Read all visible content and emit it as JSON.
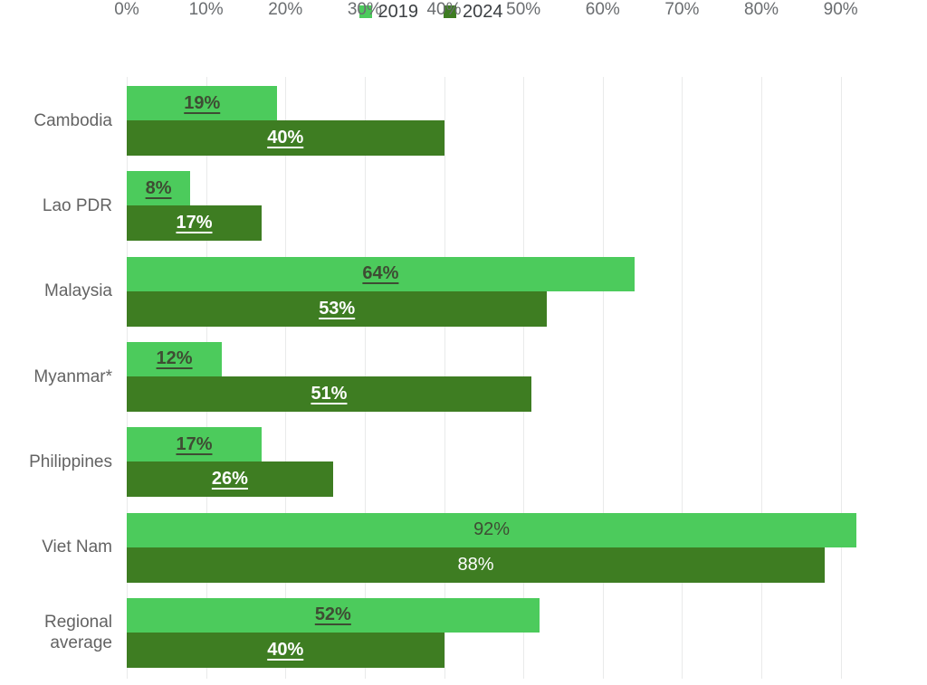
{
  "legend": {
    "items": [
      {
        "label": "2019",
        "color": "#4ccb5c"
      },
      {
        "label": "2024",
        "color": "#3e7d22"
      }
    ]
  },
  "chart_data": {
    "type": "bar",
    "orientation": "horizontal",
    "title": "",
    "categories": [
      "Cambodia",
      "Lao PDR",
      "Malaysia",
      "Myanmar*",
      "Philippines",
      "Viet Nam",
      "Regional average"
    ],
    "series": [
      {
        "name": "2019",
        "color": "#4ccb5c",
        "values": [
          19,
          8,
          64,
          12,
          17,
          92,
          52
        ]
      },
      {
        "name": "2024",
        "color": "#3e7d22",
        "values": [
          40,
          17,
          53,
          51,
          26,
          88,
          40
        ]
      }
    ],
    "value_suffix": "%",
    "x_ticks": [
      "0%",
      "10%",
      "20%",
      "30%",
      "40%",
      "50%",
      "60%",
      "70%",
      "80%",
      "90%"
    ],
    "x_tick_values": [
      0,
      10,
      20,
      30,
      40,
      50,
      60,
      70,
      80,
      90
    ],
    "xlim": [
      0,
      97
    ],
    "grid": true,
    "legend_position": "top",
    "value_label_underline": [
      true,
      true,
      true,
      true,
      true,
      false,
      true
    ],
    "value_label_bold": [
      true,
      true,
      true,
      true,
      true,
      false,
      true
    ]
  },
  "colors": {
    "value_label_on_light": "#3e4c33",
    "value_label_on_dark": "#ffffff",
    "category_label": "#636363",
    "axis_label": "#6a6d70",
    "gridline": "#e9eaea",
    "background": "#ffffff"
  }
}
